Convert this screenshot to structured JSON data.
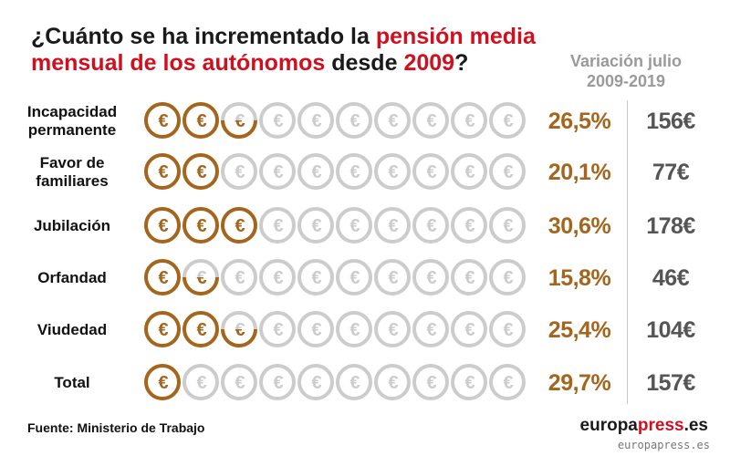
{
  "title": {
    "part1": "¿Cuánto se ha incrementado la ",
    "highlight1": "pensión media mensual de los autónomos",
    "part2": " desde ",
    "highlight2": "2009",
    "part3": "?"
  },
  "column_header": "Variación julio 2009-2019",
  "source": "Fuente: Ministerio de Trabajo",
  "brand": {
    "part1": "europa",
    "highlight": "press",
    "part2": ".es"
  },
  "watermark": "europapress.es",
  "colors": {
    "coin_filled": "#a4651c",
    "coin_empty": "#cccccc",
    "title_highlight": "#d1101f",
    "percent_text": "#a4651c",
    "amount_text": "#555555",
    "header_text": "#9a9a9a"
  },
  "icon": "euro-coin-icon",
  "chart_data": {
    "type": "bar",
    "unit_icon": "euro-coin",
    "icons_per_row": 10,
    "columns": [
      "Variación julio 2009-2019",
      ""
    ],
    "categories": [
      "Incapacidad permanente",
      "Favor de familiares",
      "Jubilación",
      "Orfandad",
      "Viudedad",
      "Total"
    ],
    "category_lines": [
      [
        "Incapacidad",
        "permanente"
      ],
      [
        "Favor de",
        "familiares"
      ],
      [
        "Jubilación"
      ],
      [
        "Orfandad"
      ],
      [
        "Viudedad"
      ],
      [
        "Total"
      ]
    ],
    "percent_labels": [
      "26,5%",
      "20,1%",
      "30,6%",
      "15,8%",
      "25,4%",
      "29,7%"
    ],
    "percent_values": [
      26.5,
      20.1,
      30.6,
      15.8,
      25.4,
      29.7
    ],
    "amount_labels": [
      "156€",
      "77€",
      "178€",
      "46€",
      "104€",
      "157€"
    ],
    "amount_values": [
      156,
      77,
      178,
      46,
      104,
      157
    ],
    "filled_coins": [
      2.5,
      2,
      3,
      1.5,
      2.5,
      1
    ]
  }
}
